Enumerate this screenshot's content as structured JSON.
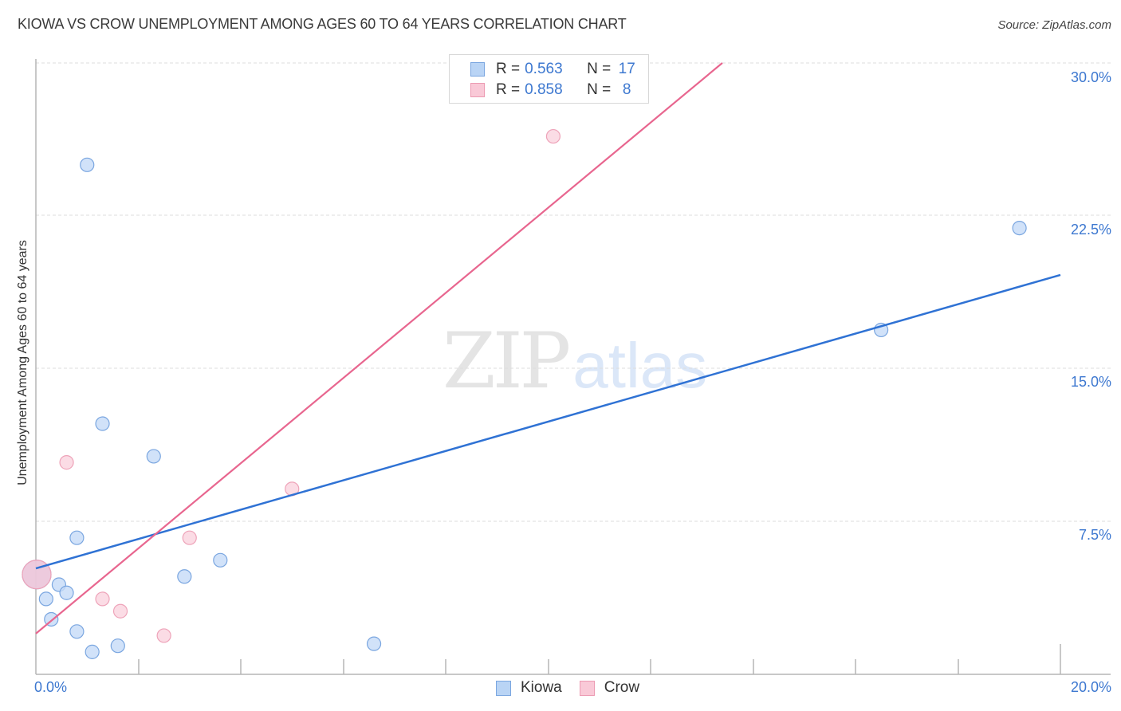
{
  "header": {
    "title": "KIOWA VS CROW UNEMPLOYMENT AMONG AGES 60 TO 64 YEARS CORRELATION CHART",
    "source": "Source: ZipAtlas.com"
  },
  "watermark": {
    "zip": "ZIP",
    "atlas": "atlas"
  },
  "legend": {
    "rows": [
      {
        "r_label": "R = ",
        "r_value": "0.563",
        "n_label": "N = ",
        "n_value": "17",
        "color": "#b9d4f5"
      },
      {
        "r_label": "R = ",
        "r_value": "0.858",
        "n_label": "N = ",
        "n_value": "8",
        "color": "#f9c9d7"
      }
    ]
  },
  "bottom_legend": {
    "items": [
      {
        "label": "Kiowa",
        "color": "#b9d4f5"
      },
      {
        "label": "Crow",
        "color": "#f9c9d7"
      }
    ]
  },
  "axes": {
    "ylabel": "Unemployment Among Ages 60 to 64 years",
    "y_ticks": [
      "30.0%",
      "22.5%",
      "15.0%",
      "7.5%"
    ],
    "x_ticks": [
      "0.0%",
      "20.0%"
    ]
  },
  "colors": {
    "kiowa": "#2f72d4",
    "crow": "#e8668f",
    "kiowa_fill": "#c6dbf7",
    "crow_fill": "#fad0dc",
    "tick_text": "#3d78d0"
  },
  "chart_data": {
    "type": "scatter",
    "title": "KIOWA VS CROW UNEMPLOYMENT AMONG AGES 60 TO 64 YEARS CORRELATION CHART",
    "xlabel": "",
    "ylabel": "Unemployment Among Ages 60 to 64 years",
    "xlim": [
      0,
      20
    ],
    "ylim": [
      0,
      30
    ],
    "x_ticks": [
      "0.0%",
      "20.0%"
    ],
    "y_ticks": [
      "7.5%",
      "15.0%",
      "22.5%",
      "30.0%"
    ],
    "grid": true,
    "legend_position": "top-center / bottom",
    "series": [
      {
        "name": "Kiowa",
        "color": "#2f72d4",
        "R": 0.563,
        "N": 17,
        "points": [
          [
            0.0,
            4.9
          ],
          [
            0.2,
            3.7
          ],
          [
            0.3,
            2.7
          ],
          [
            0.45,
            4.4
          ],
          [
            0.6,
            4.0
          ],
          [
            0.8,
            6.7
          ],
          [
            0.8,
            2.1
          ],
          [
            1.0,
            25.0
          ],
          [
            1.1,
            1.1
          ],
          [
            1.3,
            12.3
          ],
          [
            1.6,
            1.4
          ],
          [
            2.3,
            10.7
          ],
          [
            2.9,
            4.8
          ],
          [
            3.6,
            5.6
          ],
          [
            6.6,
            1.5
          ],
          [
            16.5,
            16.9
          ],
          [
            19.2,
            21.9
          ]
        ],
        "trendline": {
          "x": [
            0,
            20
          ],
          "y": [
            5.2,
            19.6
          ]
        }
      },
      {
        "name": "Crow",
        "color": "#e8668f",
        "R": 0.858,
        "N": 8,
        "points": [
          [
            0.0,
            4.9
          ],
          [
            0.6,
            10.4
          ],
          [
            1.3,
            3.7
          ],
          [
            1.65,
            3.1
          ],
          [
            2.5,
            1.9
          ],
          [
            3.0,
            6.7
          ],
          [
            5.0,
            9.1
          ],
          [
            10.1,
            26.4
          ]
        ],
        "trendline": {
          "x": [
            0,
            13.4
          ],
          "y": [
            2.0,
            30.0
          ]
        }
      }
    ]
  }
}
